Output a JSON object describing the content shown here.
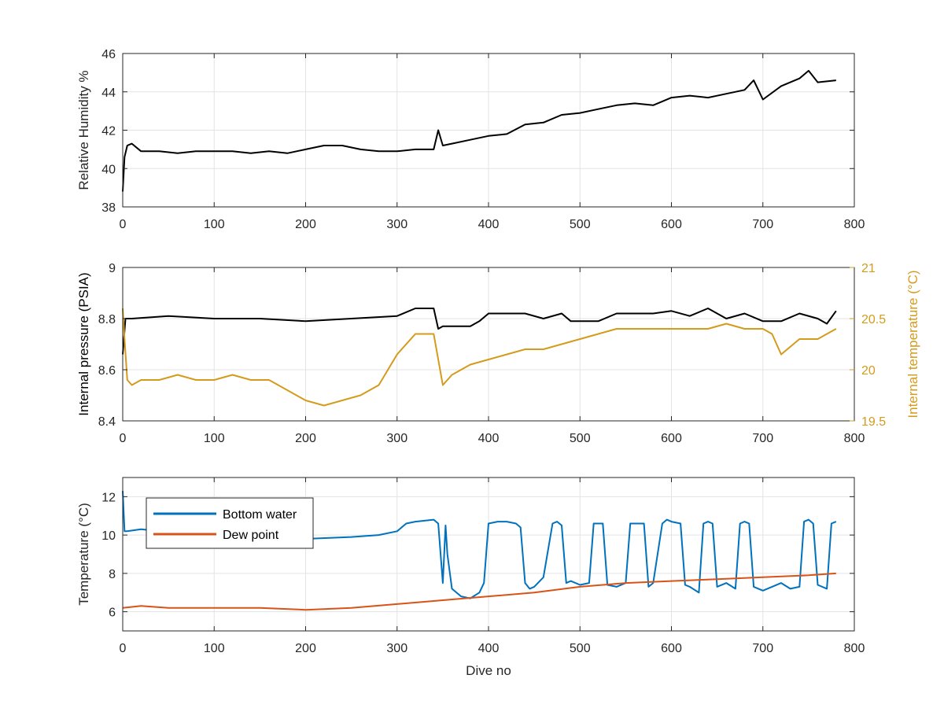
{
  "chart_data": [
    {
      "type": "line",
      "title": "",
      "xlabel": "",
      "ylabel": "Relative Humidity %",
      "xlim": [
        0,
        800
      ],
      "ylim": [
        38,
        46
      ],
      "xticks": [
        0,
        100,
        200,
        300,
        400,
        500,
        600,
        700,
        800
      ],
      "yticks": [
        38,
        40,
        42,
        44,
        46
      ],
      "grid": true,
      "series": [
        {
          "color": "#000000",
          "x": [
            0,
            2,
            5,
            10,
            20,
            40,
            60,
            80,
            100,
            120,
            140,
            160,
            180,
            200,
            220,
            240,
            260,
            280,
            300,
            320,
            340,
            345,
            350,
            360,
            380,
            400,
            420,
            440,
            460,
            480,
            500,
            520,
            540,
            560,
            580,
            600,
            620,
            640,
            660,
            680,
            690,
            700,
            720,
            740,
            750,
            760,
            780
          ],
          "y": [
            38.8,
            40.6,
            41.2,
            41.3,
            40.9,
            40.9,
            40.8,
            40.9,
            40.9,
            40.9,
            40.8,
            40.9,
            40.8,
            41.0,
            41.2,
            41.2,
            41.0,
            40.9,
            40.9,
            41.0,
            41.0,
            42.0,
            41.2,
            41.3,
            41.5,
            41.7,
            41.8,
            42.3,
            42.4,
            42.8,
            42.9,
            43.1,
            43.3,
            43.4,
            43.3,
            43.7,
            43.8,
            43.7,
            43.9,
            44.1,
            44.6,
            43.6,
            44.3,
            44.7,
            45.1,
            44.5,
            44.6
          ]
        }
      ]
    },
    {
      "type": "line",
      "title": "",
      "xlabel": "",
      "ylabel": "Internal pressure (PSIA)",
      "ylabel_right": "Internal temperature (°C)",
      "xlim": [
        0,
        800
      ],
      "ylim": [
        8.4,
        9.0
      ],
      "ylim_right": [
        19.5,
        21.0
      ],
      "xticks": [
        0,
        100,
        200,
        300,
        400,
        500,
        600,
        700,
        800
      ],
      "yticks": [
        8.4,
        8.6,
        8.8,
        9.0
      ],
      "yticks_right": [
        19.5,
        20.0,
        20.5,
        21.0
      ],
      "grid": true,
      "series": [
        {
          "axis": "left",
          "color": "#000000",
          "x": [
            0,
            3,
            10,
            50,
            100,
            150,
            200,
            250,
            300,
            320,
            340,
            345,
            350,
            380,
            390,
            400,
            420,
            440,
            460,
            480,
            490,
            500,
            520,
            540,
            560,
            580,
            600,
            620,
            640,
            660,
            680,
            700,
            720,
            740,
            760,
            770,
            780
          ],
          "y": [
            8.66,
            8.8,
            8.8,
            8.81,
            8.8,
            8.8,
            8.79,
            8.8,
            8.81,
            8.84,
            8.84,
            8.76,
            8.77,
            8.77,
            8.79,
            8.82,
            8.82,
            8.82,
            8.8,
            8.82,
            8.79,
            8.79,
            8.79,
            8.82,
            8.82,
            8.82,
            8.83,
            8.81,
            8.84,
            8.8,
            8.82,
            8.79,
            8.79,
            8.82,
            8.8,
            8.78,
            8.83
          ]
        },
        {
          "axis": "right",
          "color": "#D49B1C",
          "x": [
            0,
            2,
            5,
            10,
            20,
            40,
            60,
            80,
            100,
            120,
            140,
            160,
            180,
            200,
            220,
            240,
            260,
            280,
            300,
            320,
            340,
            345,
            350,
            360,
            380,
            400,
            420,
            440,
            460,
            480,
            500,
            520,
            540,
            560,
            580,
            600,
            620,
            640,
            660,
            680,
            700,
            710,
            720,
            740,
            760,
            780
          ],
          "y": [
            20.6,
            20.3,
            19.9,
            19.85,
            19.9,
            19.9,
            19.95,
            19.9,
            19.9,
            19.95,
            19.9,
            19.9,
            19.8,
            19.7,
            19.65,
            19.7,
            19.75,
            19.85,
            20.15,
            20.35,
            20.35,
            20.1,
            19.85,
            19.95,
            20.05,
            20.1,
            20.15,
            20.2,
            20.2,
            20.25,
            20.3,
            20.35,
            20.4,
            20.4,
            20.4,
            20.4,
            20.4,
            20.4,
            20.45,
            20.4,
            20.4,
            20.35,
            20.15,
            20.3,
            20.3,
            20.4
          ]
        }
      ]
    },
    {
      "type": "line",
      "title": "",
      "xlabel": "Dive no",
      "ylabel": "Temperature (°C)",
      "xlim": [
        0,
        800
      ],
      "ylim": [
        5,
        13
      ],
      "xticks": [
        0,
        100,
        200,
        300,
        400,
        500,
        600,
        700,
        800
      ],
      "yticks": [
        6,
        8,
        10,
        12
      ],
      "grid": true,
      "legend": "top-left",
      "series": [
        {
          "name": "Bottom water",
          "color": "#0072BD",
          "x": [
            0,
            2,
            5,
            20,
            40,
            60,
            80,
            100,
            150,
            200,
            250,
            280,
            300,
            310,
            320,
            340,
            345,
            350,
            353,
            355,
            360,
            370,
            380,
            390,
            395,
            400,
            410,
            420,
            430,
            435,
            440,
            445,
            450,
            460,
            470,
            475,
            480,
            485,
            490,
            500,
            510,
            515,
            520,
            525,
            530,
            540,
            550,
            555,
            560,
            570,
            575,
            580,
            590,
            595,
            600,
            610,
            615,
            620,
            630,
            635,
            640,
            645,
            650,
            660,
            670,
            675,
            680,
            685,
            690,
            700,
            710,
            720,
            730,
            740,
            745,
            750,
            755,
            760,
            770,
            775,
            780
          ],
          "y": [
            12.3,
            10.2,
            10.2,
            10.3,
            10.2,
            10.0,
            9.9,
            9.9,
            9.9,
            9.8,
            9.9,
            10.0,
            10.2,
            10.6,
            10.7,
            10.8,
            10.6,
            7.5,
            10.5,
            9.0,
            7.2,
            6.8,
            6.7,
            7.0,
            7.5,
            10.6,
            10.7,
            10.7,
            10.6,
            10.4,
            7.5,
            7.2,
            7.3,
            7.8,
            10.6,
            10.7,
            10.5,
            7.5,
            7.6,
            7.4,
            7.5,
            10.6,
            10.6,
            10.6,
            7.4,
            7.3,
            7.5,
            10.6,
            10.6,
            10.6,
            7.3,
            7.5,
            10.6,
            10.8,
            10.7,
            10.6,
            7.4,
            7.3,
            7.0,
            10.6,
            10.7,
            10.6,
            7.3,
            7.5,
            7.2,
            10.6,
            10.7,
            10.6,
            7.3,
            7.1,
            7.3,
            7.5,
            7.2,
            7.3,
            10.7,
            10.8,
            10.6,
            7.4,
            7.2,
            10.6,
            10.7
          ]
        },
        {
          "name": "Dew point",
          "color": "#D95319",
          "x": [
            0,
            20,
            50,
            100,
            150,
            200,
            250,
            300,
            350,
            400,
            450,
            500,
            550,
            600,
            650,
            700,
            750,
            780
          ],
          "y": [
            6.2,
            6.3,
            6.2,
            6.2,
            6.2,
            6.1,
            6.2,
            6.4,
            6.6,
            6.8,
            7.0,
            7.3,
            7.5,
            7.6,
            7.7,
            7.8,
            7.9,
            8.0
          ]
        }
      ]
    }
  ]
}
